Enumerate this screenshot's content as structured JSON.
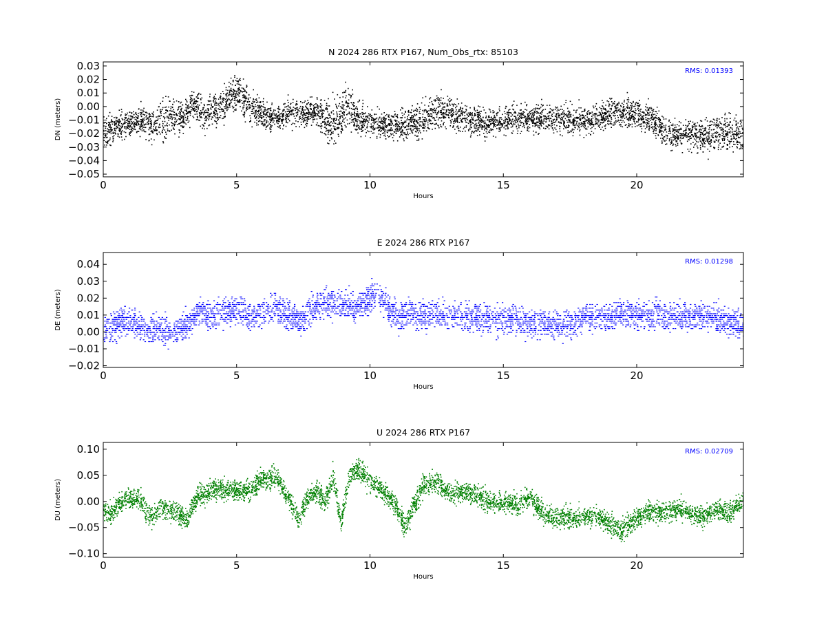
{
  "figure": {
    "hours_label": "Hours"
  },
  "chart_data": [
    {
      "type": "scatter",
      "title": "N 2024 286 RTX  P167, Num_Obs_rtx: 85103",
      "xlabel": "Hours",
      "ylabel": "DN (meters)",
      "xlim": [
        0,
        24
      ],
      "ylim": [
        -0.052,
        0.033
      ],
      "xticks": [
        "0",
        "5",
        "10",
        "15",
        "20"
      ],
      "yticks": [
        "0.03",
        "0.02",
        "0.01",
        "0.00",
        "−0.01",
        "−0.02",
        "−0.03",
        "−0.04",
        "−0.05"
      ],
      "ytick_values": [
        0.03,
        0.02,
        0.01,
        0.0,
        -0.01,
        -0.02,
        -0.03,
        -0.04,
        -0.05
      ],
      "color": "#000000",
      "rms_text": "RMS:  0.01393",
      "rms_color": "#0000ff",
      "grid": false,
      "series": [
        {
          "x": [
            0,
            0.5,
            1.0,
            1.5,
            1.8,
            2.2,
            2.6,
            3.0,
            3.3,
            3.8,
            4.3,
            4.8,
            5.1,
            5.4,
            5.8,
            6.3,
            7.0,
            7.6,
            8.0,
            8.5,
            8.8,
            9.2,
            9.6,
            10.2,
            11.0,
            12.0,
            12.5,
            13.0,
            13.8,
            14.5,
            15.0,
            16.0,
            17.0,
            18.0,
            19.0,
            19.5,
            20.0,
            20.5,
            21.0,
            21.5,
            22.0,
            22.5,
            23.0,
            23.5,
            24.0
          ],
          "center": [
            -0.017,
            -0.015,
            -0.012,
            -0.01,
            -0.015,
            -0.008,
            -0.007,
            -0.009,
            0.002,
            -0.006,
            -0.002,
            0.008,
            0.01,
            0.003,
            -0.004,
            -0.008,
            -0.005,
            -0.004,
            -0.004,
            -0.012,
            -0.008,
            0.002,
            -0.01,
            -0.012,
            -0.014,
            -0.01,
            -0.002,
            -0.004,
            -0.01,
            -0.012,
            -0.01,
            -0.008,
            -0.009,
            -0.01,
            -0.005,
            -0.004,
            -0.005,
            -0.008,
            -0.018,
            -0.02,
            -0.02,
            -0.022,
            -0.018,
            -0.02,
            -0.022
          ],
          "spread": [
            0.01,
            0.009,
            0.009,
            0.009,
            0.01,
            0.014,
            0.012,
            0.01,
            0.01,
            0.01,
            0.01,
            0.012,
            0.013,
            0.011,
            0.009,
            0.008,
            0.009,
            0.009,
            0.009,
            0.012,
            0.016,
            0.014,
            0.01,
            0.009,
            0.009,
            0.011,
            0.012,
            0.01,
            0.01,
            0.009,
            0.009,
            0.009,
            0.009,
            0.009,
            0.009,
            0.01,
            0.01,
            0.01,
            0.01,
            0.01,
            0.01,
            0.012,
            0.014,
            0.012,
            0.012
          ]
        }
      ]
    },
    {
      "type": "scatter",
      "title": "E 2024 286 RTX  P167",
      "xlabel": "Hours",
      "ylabel": "DE (meters)",
      "xlim": [
        0,
        24
      ],
      "ylim": [
        -0.021,
        0.047
      ],
      "xticks": [
        "0",
        "5",
        "10",
        "15",
        "20"
      ],
      "yticks": [
        "0.04",
        "0.03",
        "0.02",
        "0.01",
        "0.00",
        "−0.01",
        "−0.02"
      ],
      "ytick_values": [
        0.04,
        0.03,
        0.02,
        0.01,
        0.0,
        -0.01,
        -0.02
      ],
      "color": "#0000ff",
      "rms_text": "RMS:  0.01298",
      "rms_color": "#0000ff",
      "grid": false,
      "series": [
        {
          "x": [
            0,
            0.4,
            0.8,
            1.2,
            1.6,
            2.0,
            2.4,
            2.8,
            3.2,
            3.6,
            4.0,
            4.5,
            5.0,
            5.5,
            6.0,
            6.5,
            7.0,
            7.5,
            8.0,
            8.5,
            9.0,
            9.5,
            10.0,
            10.3,
            10.6,
            11.0,
            11.4,
            11.8,
            12.5,
            13.0,
            14.0,
            15.0,
            16.0,
            17.0,
            17.5,
            18.0,
            19.0,
            20.0,
            21.0,
            22.0,
            22.5,
            23.0,
            23.5,
            24.0
          ],
          "center": [
            0.001,
            0.004,
            0.007,
            0.005,
            0.002,
            0.002,
            0.0,
            0.002,
            0.005,
            0.013,
            0.01,
            0.012,
            0.013,
            0.01,
            0.012,
            0.014,
            0.009,
            0.008,
            0.017,
            0.018,
            0.016,
            0.015,
            0.02,
            0.024,
            0.016,
            0.008,
            0.012,
            0.01,
            0.01,
            0.009,
            0.009,
            0.008,
            0.006,
            0.004,
            0.005,
            0.009,
            0.01,
            0.01,
            0.01,
            0.009,
            0.01,
            0.008,
            0.006,
            0.004
          ]
        }
      ]
    },
    {
      "type": "scatter",
      "title": "U 2024 286 RTX  P167",
      "xlabel": "Hours",
      "ylabel": "DU (meters)",
      "xlim": [
        0,
        24
      ],
      "ylim": [
        -0.107,
        0.113
      ],
      "xticks": [
        "0",
        "5",
        "10",
        "15",
        "20"
      ],
      "yticks": [
        "0.10",
        "0.05",
        "0.00",
        "−0.05",
        "−0.10"
      ],
      "ytick_values": [
        0.1,
        0.05,
        0.0,
        -0.05,
        -0.1
      ],
      "color": "#008000",
      "rms_text": "RMS:  0.02709",
      "rms_color": "#0000ff",
      "grid": false,
      "series": [
        {
          "x": [
            0,
            0.3,
            0.8,
            1.3,
            1.8,
            2.2,
            2.7,
            3.1,
            3.5,
            4.0,
            4.5,
            5.0,
            5.5,
            6.0,
            6.5,
            7.0,
            7.3,
            7.6,
            8.0,
            8.3,
            8.6,
            8.9,
            9.2,
            9.5,
            10.0,
            10.5,
            11.0,
            11.3,
            11.6,
            12.0,
            12.5,
            13.0,
            13.5,
            14.0,
            14.5,
            15.0,
            15.5,
            16.0,
            16.5,
            17.0,
            18.0,
            18.5,
            19.0,
            19.4,
            19.8,
            20.3,
            21.0,
            21.5,
            22.0,
            22.5,
            23.0,
            23.5,
            24.0
          ],
          "center": [
            -0.015,
            -0.02,
            0.005,
            0.005,
            -0.03,
            -0.01,
            -0.02,
            -0.035,
            0.01,
            0.02,
            0.025,
            0.02,
            0.025,
            0.045,
            0.045,
            0.0,
            -0.035,
            0.005,
            0.02,
            0.0,
            0.05,
            -0.04,
            0.05,
            0.065,
            0.04,
            0.02,
            -0.01,
            -0.05,
            -0.01,
            0.03,
            0.04,
            0.015,
            0.02,
            0.015,
            0.0,
            0.0,
            -0.005,
            0.01,
            -0.025,
            -0.03,
            -0.03,
            -0.025,
            -0.045,
            -0.055,
            -0.04,
            -0.02,
            -0.02,
            -0.01,
            -0.025,
            -0.025,
            -0.015,
            -0.02,
            0.005
          ]
        }
      ]
    }
  ]
}
